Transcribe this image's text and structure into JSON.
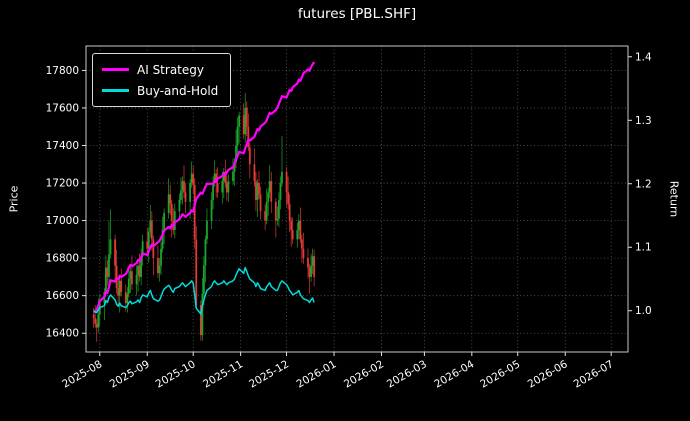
{
  "window": {
    "title": "futures [PBL.SHF]"
  },
  "chart_data": {
    "type": "candlestick",
    "title": "futures [PBL.SHF]",
    "legend_position": "upper-left",
    "grid": true,
    "axes": {
      "left": {
        "label": "Price",
        "ticks": [
          16400,
          16600,
          16800,
          17000,
          17200,
          17400,
          17600,
          17800
        ],
        "lim": [
          16300,
          17930
        ]
      },
      "right": {
        "label": "Return",
        "ticks": [
          "1.0",
          "1.1",
          "1.2",
          "1.3",
          "1.4"
        ],
        "tick_values": [
          1.0,
          1.1,
          1.2,
          1.3,
          1.4
        ],
        "lim": [
          0.935,
          1.417
        ]
      },
      "x": {
        "tick_labels": [
          "2025-08",
          "2025-09",
          "2025-10",
          "2025-11",
          "2025-12",
          "2026-01",
          "2026-02",
          "2026-03",
          "2026-04",
          "2026-05",
          "2026-06",
          "2026-07"
        ],
        "tick_dates": [
          "2025-08-01",
          "2025-09-01",
          "2025-10-01",
          "2025-11-01",
          "2025-12-01",
          "2026-01-01",
          "2026-02-01",
          "2026-03-01",
          "2026-04-01",
          "2026-05-01",
          "2026-06-01",
          "2026-07-01"
        ],
        "lim": [
          "2025-07-23",
          "2026-07-12"
        ]
      }
    },
    "candles": {
      "start_date": "2025-07-28",
      "frequency": "weekdays",
      "open_first": 16500,
      "close": [
        16480,
        16450,
        16430,
        16500,
        16560,
        16620,
        16750,
        16700,
        16820,
        16900,
        16760,
        16640,
        16600,
        16680,
        16620,
        16560,
        16610,
        16690,
        16730,
        16660,
        16710,
        16760,
        16700,
        16810,
        16890,
        16850,
        16940,
        17000,
        16900,
        16800,
        16720,
        16760,
        16850,
        16950,
        17040,
        17140,
        17090,
        17000,
        16950,
        17050,
        17110,
        17160,
        17210,
        17150,
        17100,
        17200,
        17250,
        17190,
        16900,
        16550,
        16390,
        16610,
        16760,
        16900,
        17000,
        17110,
        17200,
        17250,
        17200,
        17150,
        17210,
        17260,
        17200,
        17150,
        17210,
        17260,
        17310,
        17400,
        17500,
        17560,
        17460,
        17600,
        17500,
        17390,
        17300,
        17210,
        17110,
        17200,
        17140,
        17050,
        17000,
        17100,
        17150,
        17210,
        17100,
        17000,
        17010,
        17110,
        17200,
        17260,
        17150,
        17090,
        17000,
        16950,
        16900,
        16950,
        17000,
        16900,
        16850,
        16800,
        16750,
        16700,
        16760,
        16810,
        16700
      ],
      "wick_up_pattern": [
        35,
        70,
        25,
        85,
        50,
        20,
        65,
        40
      ],
      "wick_down_pattern": [
        50,
        20,
        75,
        30,
        60,
        90,
        25,
        45
      ],
      "wick_overrides": {
        "8": {
          "high": 17000
        },
        "9": {
          "high": 17060
        },
        "50": {
          "low": 16360
        },
        "71": {
          "high": 17680
        },
        "89": {
          "high": 17450
        }
      },
      "up_color": "#1ca62c",
      "down_color": "#e53935"
    },
    "series": [
      {
        "name": "AI Strategy",
        "color": "#ff00ff",
        "axis": "right",
        "width": 2.2,
        "values": [
          1.0,
          0.998,
          1.002,
          1.008,
          1.015,
          1.022,
          1.03,
          1.028,
          1.038,
          1.048,
          1.046,
          1.05,
          1.05,
          1.055,
          1.053,
          1.058,
          1.062,
          1.068,
          1.072,
          1.07,
          1.075,
          1.08,
          1.078,
          1.084,
          1.09,
          1.088,
          1.094,
          1.1,
          1.104,
          1.102,
          1.108,
          1.11,
          1.115,
          1.12,
          1.126,
          1.132,
          1.13,
          1.135,
          1.133,
          1.139,
          1.144,
          1.148,
          1.152,
          1.15,
          1.148,
          1.154,
          1.158,
          1.156,
          1.166,
          1.176,
          1.186,
          1.184,
          1.19,
          1.195,
          1.2,
          1.2,
          1.2,
          1.205,
          1.203,
          1.208,
          1.212,
          1.216,
          1.214,
          1.218,
          1.222,
          1.226,
          1.232,
          1.238,
          1.244,
          1.25,
          1.248,
          1.256,
          1.262,
          1.27,
          1.268,
          1.274,
          1.28,
          1.286,
          1.284,
          1.29,
          1.296,
          1.3,
          1.306,
          1.312,
          1.31,
          1.316,
          1.32,
          1.326,
          1.332,
          1.338,
          1.336,
          1.342,
          1.348,
          1.346,
          1.352,
          1.358,
          1.364,
          1.362,
          1.368,
          1.374,
          1.38,
          1.378,
          1.384,
          1.388,
          1.392
        ]
      },
      {
        "name": "Buy-and-Hold",
        "color": "#00dcdc",
        "axis": "right",
        "width": 1.5,
        "values": [
          1.0,
          0.998,
          0.997,
          1.001,
          1.005,
          1.008,
          1.016,
          1.013,
          1.021,
          1.025,
          1.017,
          1.01,
          1.007,
          1.012,
          1.008,
          1.005,
          1.008,
          1.013,
          1.015,
          1.011,
          1.014,
          1.017,
          1.013,
          1.02,
          1.025,
          1.022,
          1.028,
          1.032,
          1.025,
          1.019,
          1.015,
          1.017,
          1.022,
          1.029,
          1.034,
          1.04,
          1.037,
          1.032,
          1.029,
          1.035,
          1.038,
          1.041,
          1.044,
          1.041,
          1.038,
          1.044,
          1.047,
          1.043,
          1.025,
          1.004,
          0.995,
          1.008,
          1.017,
          1.025,
          1.032,
          1.038,
          1.044,
          1.047,
          1.044,
          1.041,
          1.044,
          1.047,
          1.044,
          1.041,
          1.044,
          1.047,
          1.05,
          1.056,
          1.062,
          1.066,
          1.059,
          1.068,
          1.062,
          1.055,
          1.05,
          1.044,
          1.038,
          1.044,
          1.04,
          1.035,
          1.032,
          1.038,
          1.041,
          1.044,
          1.038,
          1.032,
          1.032,
          1.038,
          1.044,
          1.047,
          1.041,
          1.037,
          1.032,
          1.029,
          1.025,
          1.029,
          1.032,
          1.025,
          1.022,
          1.019,
          1.016,
          1.013,
          1.017,
          1.02,
          1.013
        ]
      }
    ],
    "style": {
      "background": "#000000",
      "text": "#ffffff",
      "grid": "#5a5a5a",
      "spine": "#c8c8c8"
    }
  },
  "legend": {
    "items": [
      {
        "label": "AI Strategy"
      },
      {
        "label": "Buy-and-Hold"
      }
    ]
  }
}
